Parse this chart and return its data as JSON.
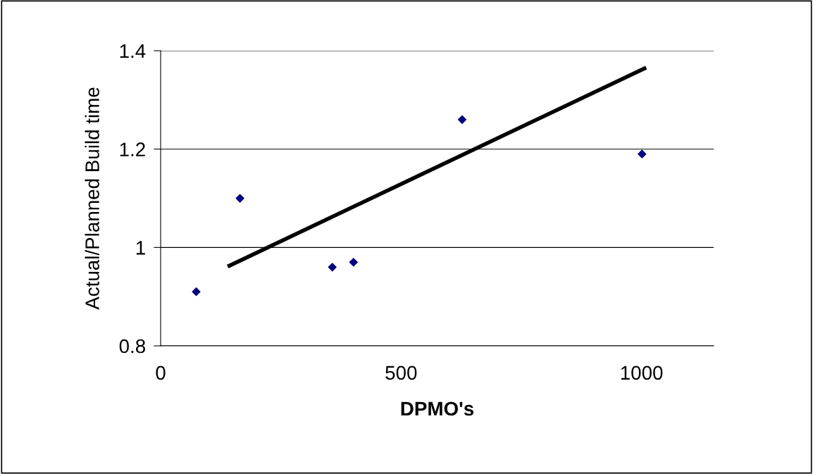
{
  "chart_data": {
    "type": "scatter",
    "xlabel": "DPMO's",
    "ylabel": "Actual/Planned Build time",
    "xlim": [
      0,
      1150
    ],
    "xticks": [
      0,
      500,
      1000
    ],
    "ylim": [
      0.8,
      1.4
    ],
    "yticks": [
      0.8,
      1,
      1.2,
      1.4
    ],
    "grid": "y",
    "marker": "diamond",
    "legend": false,
    "series": [
      {
        "color": "#000080",
        "x": [
          74,
          165,
          357,
          401,
          627,
          1001
        ],
        "values": [
          0.91,
          1.1,
          0.96,
          0.97,
          1.26,
          1.19
        ]
      },
      {
        "type": "line",
        "color": "#000000",
        "x": [
          143,
          1006
        ],
        "values": [
          0.963,
          1.364
        ],
        "marker": "none",
        "line_style": "solid"
      }
    ]
  }
}
